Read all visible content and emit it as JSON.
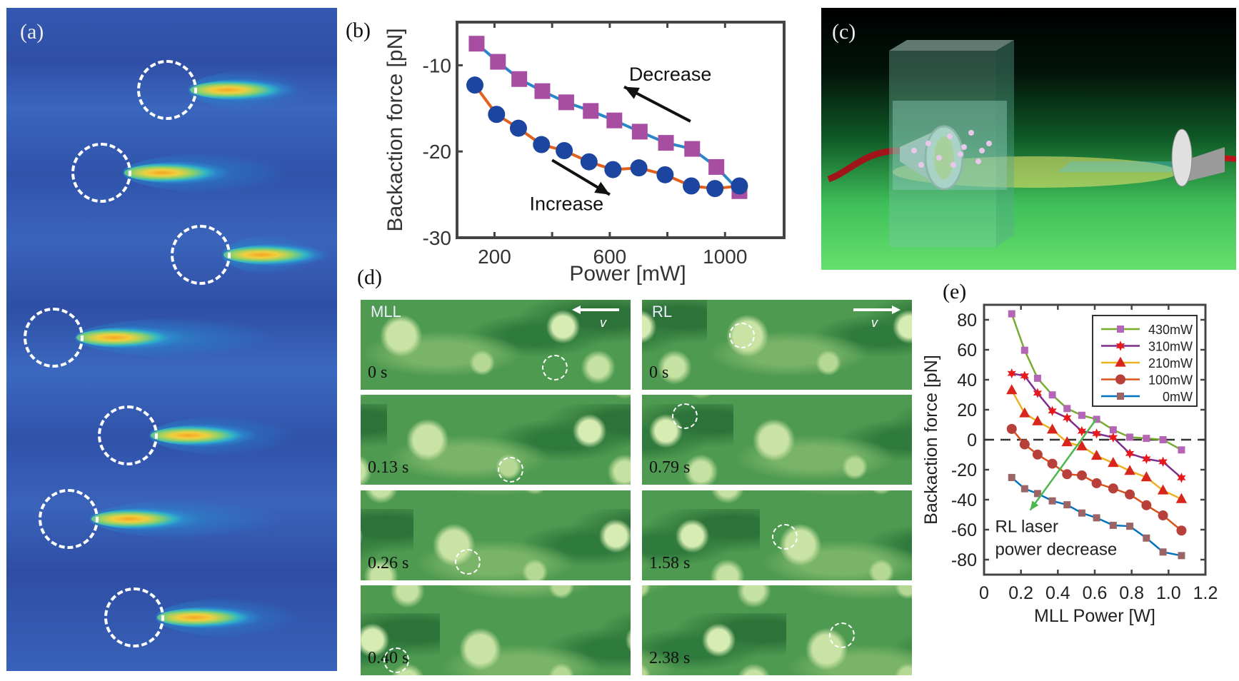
{
  "panels": {
    "a": "(a)",
    "b": "(b)",
    "c": "(c)",
    "d": "(d)",
    "e": "(e)"
  },
  "panel_d": {
    "columns": [
      "MLL",
      "RL"
    ],
    "velocity_label": "v",
    "mll_times": [
      "0 s",
      "0.13 s",
      "0.26 s",
      "0.40 s"
    ],
    "rl_times": [
      "0 s",
      "0.79 s",
      "1.58 s",
      "2.38 s"
    ]
  },
  "chart_data": [
    {
      "id": "b",
      "type": "line",
      "xlabel": "Power  [mW]",
      "ylabel": "Backaction force [pN]",
      "xlim": [
        70,
        1205
      ],
      "ylim": [
        -30,
        -5
      ],
      "xticks": [
        200,
        600,
        1000
      ],
      "xticks_minor": [
        400,
        800
      ],
      "yticks": [
        -10,
        -20,
        -30
      ],
      "grid": false,
      "series": [
        {
          "marker": "square",
          "line_color": "#2a86c8",
          "marker_color": "#a74ea3",
          "x": [
            138,
            212,
            286,
            366,
            449,
            534,
            616,
            704,
            795,
            886,
            970,
            1050
          ],
          "y": [
            -7.5,
            -9.6,
            -11.6,
            -13.0,
            -14.3,
            -15.3,
            -16.4,
            -17.7,
            -19.0,
            -19.7,
            -21.8,
            -24.6
          ]
        },
        {
          "marker": "circle",
          "line_color": "#e0601c",
          "marker_color": "#1c45a0",
          "x": [
            132,
            207,
            283,
            363,
            442,
            528,
            611,
            701,
            792,
            883,
            965,
            1050
          ],
          "y": [
            -12.3,
            -15.7,
            -17.3,
            -19.2,
            -19.9,
            -21.2,
            -22.1,
            -21.9,
            -22.7,
            -24.0,
            -24.3,
            -24.0
          ]
        }
      ],
      "annotations": [
        {
          "text": "Decrease",
          "arrow_from": [
            880,
            -16.5
          ],
          "arrow_to": [
            650,
            -12.5
          ]
        },
        {
          "text": "Increase",
          "arrow_from": [
            400,
            -21
          ],
          "arrow_to": [
            600,
            -25
          ]
        }
      ]
    },
    {
      "id": "e",
      "type": "line",
      "xlabel": "MLL Power  [W]",
      "ylabel": "Backaction force [pN]",
      "xlim": [
        0,
        1.2
      ],
      "ylim": [
        -90,
        90
      ],
      "xticks": [
        "0",
        "0.2",
        "0.4",
        "0.6",
        "0.8",
        "1.0",
        "1.2"
      ],
      "yticks": [
        80,
        60,
        40,
        20,
        0,
        -20,
        -40,
        -60,
        -80
      ],
      "grid": false,
      "zero_line": "dashed",
      "legend_position": "top-right",
      "x": [
        0.15,
        0.22,
        0.29,
        0.37,
        0.45,
        0.53,
        0.61,
        0.7,
        0.79,
        0.88,
        0.97,
        1.07
      ],
      "series": [
        {
          "name": "430mW",
          "marker": "square",
          "line_color": "#77ac30",
          "marker_color": "#b565b5",
          "y": [
            84,
            59.7,
            41,
            29.9,
            20.8,
            16.3,
            13.6,
            6.6,
            1.7,
            0.9,
            0,
            -6.8
          ]
        },
        {
          "name": "310mW",
          "marker": "star",
          "line_color": "#7e2f8e",
          "marker_color": "#e8191a",
          "y": [
            44.2,
            42.6,
            31.1,
            19.2,
            14.6,
            5.7,
            4.1,
            1.5,
            -9.2,
            -12.8,
            -14.7,
            -25.4
          ]
        },
        {
          "name": "210mW",
          "marker": "triangle",
          "line_color": "#edb120",
          "marker_color": "#d9261c",
          "y": [
            33,
            17.6,
            12.3,
            6.8,
            -1.7,
            -4.4,
            -10.7,
            -15.5,
            -20.8,
            -25.1,
            -33.8,
            -39.6
          ]
        },
        {
          "name": "100mW",
          "marker": "circle",
          "line_color": "#d95319",
          "marker_color": "#b8403a",
          "y": [
            7.2,
            -3.1,
            -9.9,
            -16,
            -23,
            -23.8,
            -29,
            -32.5,
            -36.5,
            -43.7,
            -50.5,
            -60.6
          ]
        },
        {
          "name": "0mW",
          "marker": "square",
          "line_color": "#0072bd",
          "marker_color": "#9c6565",
          "y": [
            -25.2,
            -32.7,
            -35.9,
            -40.8,
            -43.4,
            -48.9,
            -52.1,
            -57.1,
            -57.7,
            -65.6,
            -74.9,
            -77.3
          ]
        }
      ],
      "annotation": {
        "lines": [
          "RL laser",
          "power decrease"
        ],
        "arrow_color": "#4cb84c",
        "arrow_from": [
          0.61,
          14
        ],
        "arrow_to": [
          0.25,
          -47
        ],
        "text_at": [
          0.06,
          -57
        ]
      }
    }
  ]
}
